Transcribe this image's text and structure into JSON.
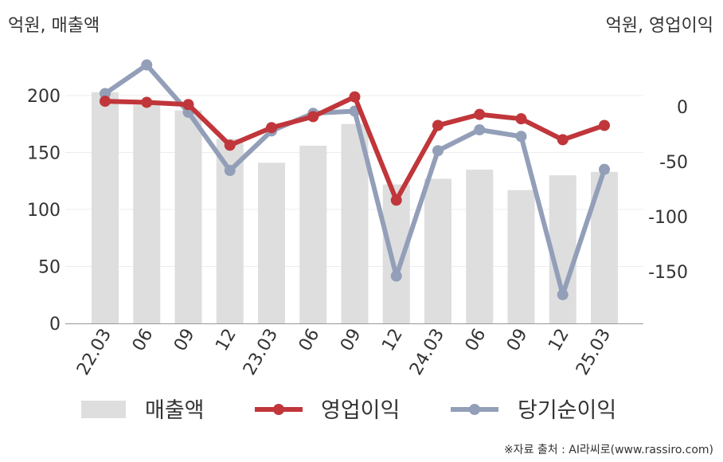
{
  "units": {
    "left": "억원, 매출액",
    "right": "억원, 영업이익"
  },
  "source": "※자료 출처 : AI라씨로(www.rassiro.com)",
  "colors": {
    "bar": "#dedede",
    "operating_profit": "#c0363a",
    "net_income": "#939fb8"
  },
  "chart_data": {
    "type": "bar+line",
    "categories": [
      "22.03",
      "06",
      "09",
      "12",
      "23.03",
      "06",
      "09",
      "12",
      "24.03",
      "06",
      "09",
      "12",
      "25.03"
    ],
    "left_axis": {
      "ticks": [
        "0",
        "50",
        "100",
        "150",
        "200"
      ],
      "ylim": [
        0,
        230
      ]
    },
    "right_axis": {
      "ticks": [
        "0",
        "-50",
        "-100",
        "-150"
      ],
      "ylim": [
        -196,
        35
      ]
    },
    "series": [
      {
        "name": "매출액",
        "type": "bar",
        "axis": "left",
        "values": [
          203,
          192,
          187,
          162,
          141,
          156,
          175,
          122,
          127,
          135,
          117,
          130,
          133
        ]
      },
      {
        "name": "영업이익",
        "type": "line",
        "axis": "right",
        "values": [
          5,
          4,
          2,
          -35,
          -19,
          -9,
          9,
          -85,
          -17,
          -7,
          -11,
          -30,
          -17
        ]
      },
      {
        "name": "당기순이익",
        "type": "line",
        "axis": "right",
        "values": [
          12,
          38,
          -5,
          -58,
          -22,
          -6,
          -4,
          -154,
          -40,
          -21,
          -27,
          -171,
          -57
        ]
      }
    ],
    "legend": [
      "매출액",
      "영업이익",
      "당기순이익"
    ],
    "legend_position": "bottom",
    "grid": true
  }
}
